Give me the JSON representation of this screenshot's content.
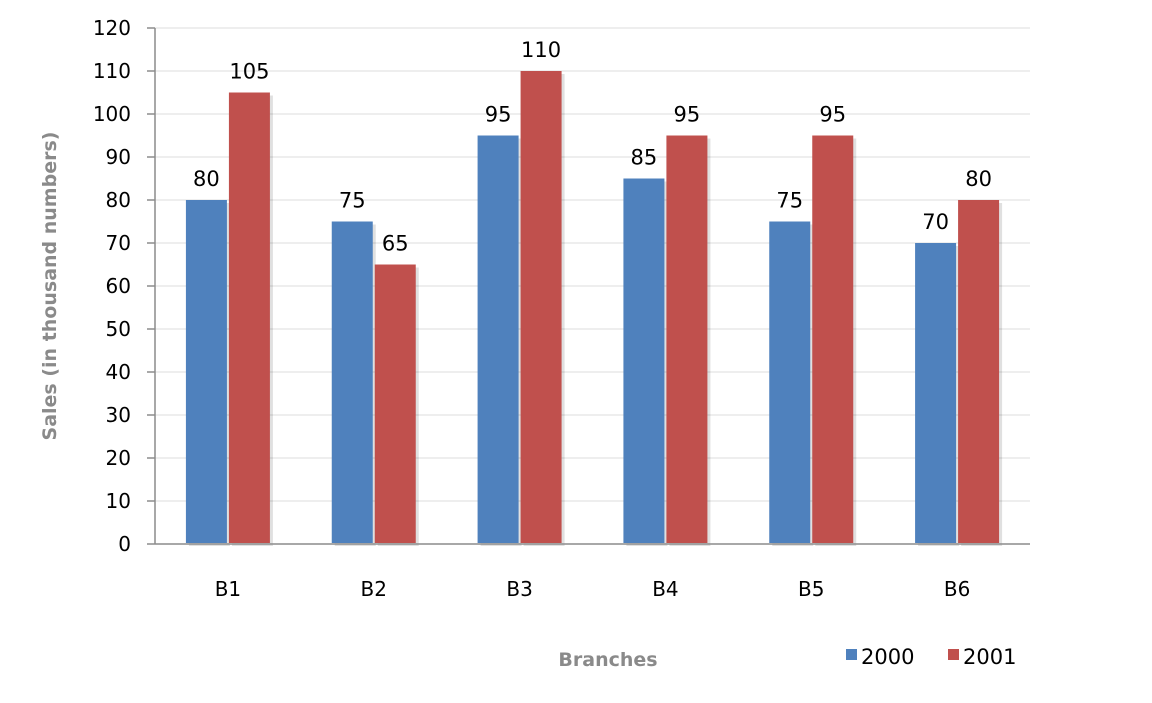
{
  "chart_data": {
    "type": "bar",
    "categories": [
      "B1",
      "B2",
      "B3",
      "B4",
      "B5",
      "B6"
    ],
    "series": [
      {
        "name": "2000",
        "color": "#4f81bd",
        "values": [
          80,
          75,
          95,
          85,
          75,
          70
        ]
      },
      {
        "name": "2001",
        "color": "#c0504d",
        "values": [
          105,
          65,
          110,
          95,
          95,
          80
        ]
      }
    ],
    "xlabel": "Branches",
    "ylabel": "Sales (in thousand numbers)",
    "ylim": [
      0,
      120
    ],
    "yticks": [
      0,
      10,
      20,
      30,
      40,
      50,
      60,
      70,
      80,
      90,
      100,
      110,
      120
    ],
    "grid": true,
    "data_labels": true,
    "legend_position": "bottom-right"
  }
}
